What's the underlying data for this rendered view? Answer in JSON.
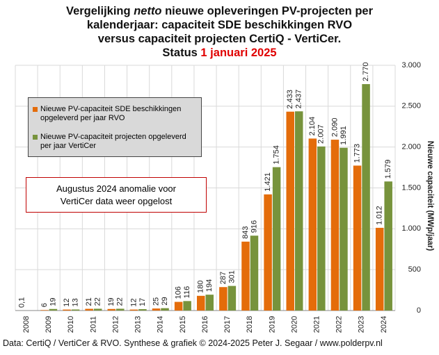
{
  "chart_data": {
    "type": "bar",
    "title": [
      "Vergelijking ",
      "netto",
      " nieuwe opleveringen PV-projecten per",
      "kalenderjaar: capaciteit SDE beschikkingen RVO",
      "versus capaciteit projecten CertiQ - VertiCer.",
      "Status ",
      "1 januari 2025"
    ],
    "annotation": [
      "Augustus 2024 anomalie voor",
      "VertiCer data weer opgelost"
    ],
    "y_axis_label": "Nieuwe capaciteit (MWp/jaar)",
    "source": "Data: CertiQ / VertiCer & RVO. Synthese & grafiek © 2024-2025 Peter J. Segaar / www.polderpv.nl",
    "categories": [
      "2008",
      "2009",
      "2010",
      "2011",
      "2012",
      "2013",
      "2014",
      "2015",
      "2016",
      "2017",
      "2018",
      "2019",
      "2020",
      "2021",
      "2022",
      "2023",
      "2024"
    ],
    "series": [
      {
        "name": "Nieuwe PV-capaciteit SDE beschikkingen opgeleverd per jaar RVO",
        "color": "#e46c0a",
        "values": [
          0.1,
          6,
          12,
          21,
          19,
          12,
          25,
          106,
          180,
          287,
          843,
          1421,
          2433,
          2104,
          2090,
          1773,
          1012
        ],
        "value_labels": [
          "0,1",
          "6",
          "12",
          "21",
          "19",
          "12",
          "25",
          "106",
          "180",
          "287",
          "843",
          "1.421",
          "2.433",
          "2.104",
          "2.090",
          "1.773",
          "1.012"
        ]
      },
      {
        "name": "Nieuwe PV-capaciteit projecten opgeleverd per jaar VertiCer",
        "color": "#77933c",
        "values": [
          null,
          19,
          13,
          22,
          22,
          17,
          29,
          116,
          194,
          301,
          916,
          1754,
          2437,
          2007,
          1991,
          2770,
          1579
        ],
        "value_labels": [
          null,
          "19",
          "13",
          "22",
          "22",
          "17",
          "29",
          "116",
          "194",
          "301",
          "916",
          "1.754",
          "2.437",
          "2.007",
          "1.991",
          "2.770",
          "1.579"
        ]
      }
    ],
    "ylim": [
      0,
      3000
    ],
    "yticks": [
      0,
      500,
      {
        "value": 1000,
        "label": "1.000"
      },
      {
        "value": 1500,
        "label": "1.500"
      },
      {
        "value": 2000,
        "label": "2.000"
      },
      {
        "value": 2500,
        "label": "2.500"
      },
      {
        "value": 3000,
        "label": "3.000"
      }
    ],
    "grid": true
  }
}
